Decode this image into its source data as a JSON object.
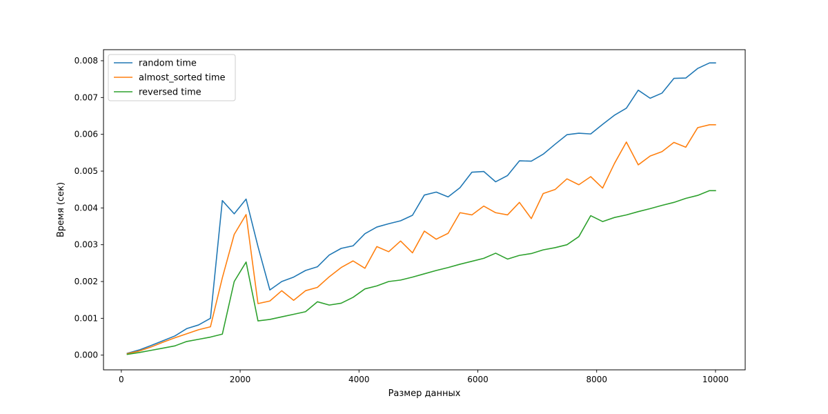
{
  "chart_data": {
    "type": "line",
    "title": "",
    "xlabel": "Размер данных",
    "ylabel": "Время (сек)",
    "xlim": [
      -300,
      10500
    ],
    "ylim": [
      -0.0004,
      0.0083
    ],
    "xticks": [
      0,
      2000,
      4000,
      6000,
      8000,
      10000
    ],
    "xtick_labels": [
      "0",
      "2000",
      "4000",
      "6000",
      "8000",
      "10000"
    ],
    "yticks": [
      0.0,
      0.001,
      0.002,
      0.003,
      0.004,
      0.005,
      0.006,
      0.007,
      0.008
    ],
    "ytick_labels": [
      "0.000",
      "0.001",
      "0.002",
      "0.003",
      "0.004",
      "0.005",
      "0.006",
      "0.007",
      "0.008"
    ],
    "grid": false,
    "legend_position": "top-left",
    "x": [
      100,
      300,
      500,
      700,
      900,
      1100,
      1300,
      1500,
      1700,
      1900,
      2100,
      2300,
      2500,
      2700,
      2900,
      3100,
      3300,
      3500,
      3700,
      3900,
      4100,
      4300,
      4500,
      4700,
      4900,
      5100,
      5300,
      5500,
      5700,
      5900,
      6100,
      6300,
      6500,
      6700,
      6900,
      7100,
      7300,
      7500,
      7700,
      7900,
      8100,
      8300,
      8500,
      8700,
      8900,
      9100,
      9300,
      9500,
      9700,
      9900,
      10000
    ],
    "series": [
      {
        "name": "random time",
        "color": "#1f77b4",
        "values": [
          5e-05,
          0.00014,
          0.00026,
          0.00039,
          0.00052,
          0.00072,
          0.00082,
          0.001,
          0.0042,
          0.00384,
          0.00424,
          0.00295,
          0.00177,
          0.002,
          0.00212,
          0.0023,
          0.0024,
          0.00272,
          0.0029,
          0.00297,
          0.0033,
          0.00348,
          0.00357,
          0.00365,
          0.0038,
          0.00435,
          0.00443,
          0.0043,
          0.00455,
          0.00497,
          0.00499,
          0.00471,
          0.00488,
          0.00528,
          0.00527,
          0.00546,
          0.00573,
          0.00599,
          0.00603,
          0.00601,
          0.00627,
          0.00652,
          0.00671,
          0.0072,
          0.00698,
          0.00712,
          0.00752,
          0.00753,
          0.00779,
          0.00794,
          0.00794
        ]
      },
      {
        "name": "almost_sorted time",
        "color": "#ff7f0e",
        "values": [
          4e-05,
          0.00011,
          0.00022,
          0.00035,
          0.00047,
          0.00058,
          0.00069,
          0.00077,
          0.0021,
          0.00328,
          0.00382,
          0.0014,
          0.00147,
          0.00175,
          0.00149,
          0.00175,
          0.00184,
          0.00213,
          0.00238,
          0.00256,
          0.00236,
          0.00295,
          0.00281,
          0.0031,
          0.00278,
          0.00337,
          0.00315,
          0.00331,
          0.00387,
          0.00381,
          0.00405,
          0.00387,
          0.00381,
          0.00415,
          0.00371,
          0.00439,
          0.0045,
          0.00479,
          0.00463,
          0.00485,
          0.00454,
          0.00521,
          0.00579,
          0.00517,
          0.00541,
          0.00553,
          0.00578,
          0.00565,
          0.00618,
          0.00626,
          0.00626
        ]
      },
      {
        "name": "reversed time",
        "color": "#2ca02c",
        "values": [
          2e-05,
          7e-05,
          0.00013,
          0.00019,
          0.00025,
          0.00037,
          0.00043,
          0.00049,
          0.00057,
          0.002,
          0.00253,
          0.00093,
          0.00097,
          0.00104,
          0.00111,
          0.00118,
          0.00145,
          0.00136,
          0.00141,
          0.00157,
          0.0018,
          0.00188,
          0.002,
          0.00204,
          0.00212,
          0.00221,
          0.0023,
          0.00238,
          0.00247,
          0.00255,
          0.00263,
          0.00277,
          0.00261,
          0.00271,
          0.00276,
          0.00286,
          0.00292,
          0.003,
          0.00322,
          0.00379,
          0.00363,
          0.00374,
          0.00381,
          0.0039,
          0.00398,
          0.00407,
          0.00415,
          0.00426,
          0.00434,
          0.00447,
          0.00447
        ]
      }
    ]
  }
}
